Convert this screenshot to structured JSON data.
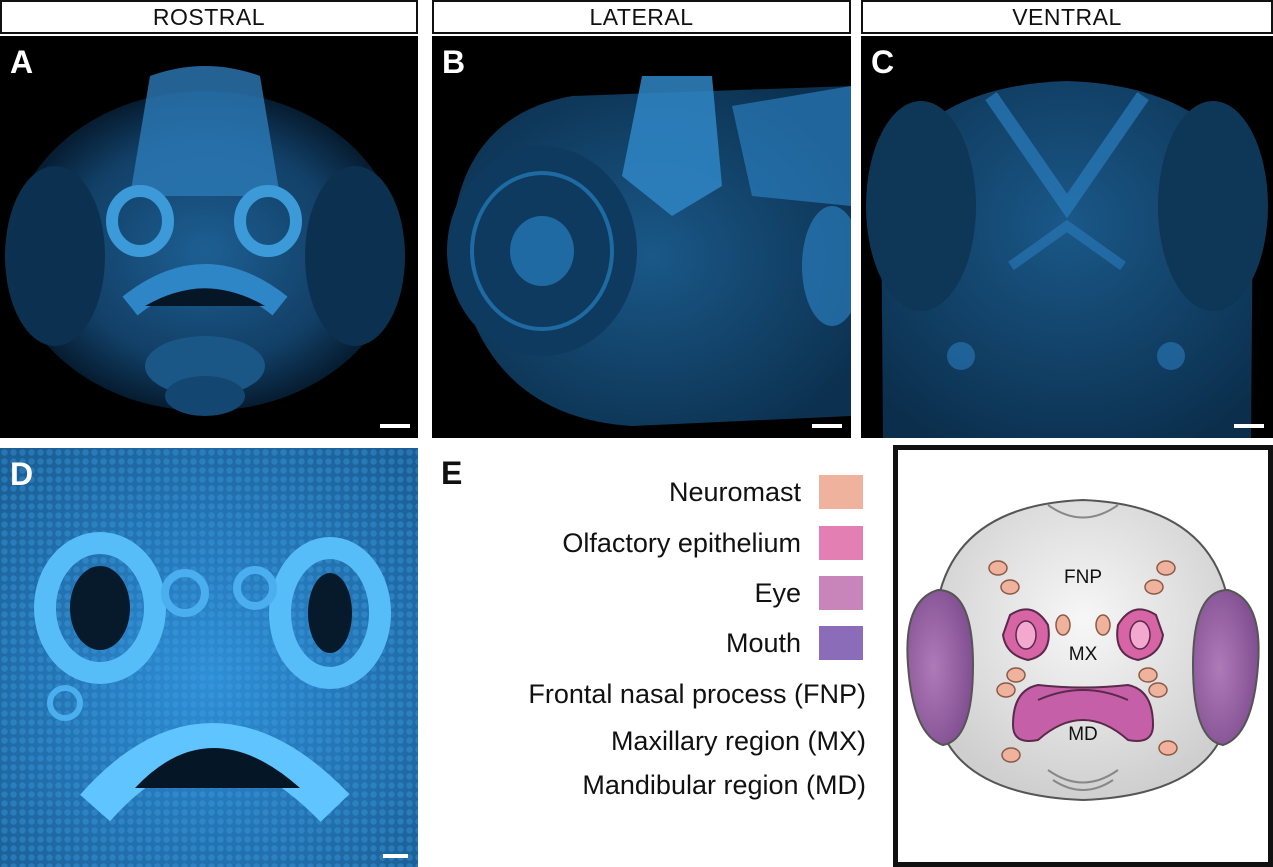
{
  "headers": {
    "rostral": "ROSTRAL",
    "lateral": "LATERAL",
    "ventral": "VENTRAL"
  },
  "panels": {
    "a": "A",
    "b": "B",
    "c": "C",
    "d": "D",
    "e": "E"
  },
  "legend": [
    {
      "label": "Neuromast",
      "color": "#efb29c"
    },
    {
      "label": "Olfactory epithelium",
      "color": "#e37fb2"
    },
    {
      "label": "Eye",
      "color": "#c785b9"
    },
    {
      "label": "Mouth",
      "color": "#8a6cb8"
    }
  ],
  "regions": [
    {
      "label": "Frontal nasal process (FNP)"
    },
    {
      "label": "Maxillary region (MX)"
    },
    {
      "label": "Mandibular region (MD)"
    }
  ],
  "diagram_labels": {
    "fnp": "FNP",
    "mx": "MX",
    "md": "MD"
  },
  "colors": {
    "stain": "#2a8ed4",
    "stain_bright": "#53b8ff"
  }
}
